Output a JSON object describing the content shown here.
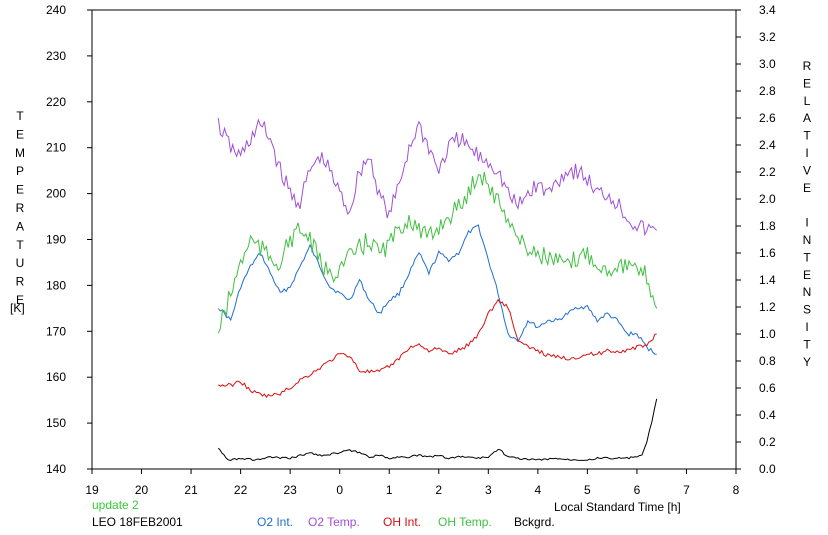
{
  "chart_data": {
    "type": "line",
    "xlabel": "Local Standard Time [h]",
    "ylabel_left": "TEMPERATURE",
    "ylabel_left_unit": "[K]",
    "ylabel_right": "RELATIVE INTENSITY",
    "xticks": [
      19,
      20,
      21,
      22,
      23,
      0,
      1,
      2,
      3,
      4,
      5,
      6,
      7,
      8
    ],
    "xlim": [
      19,
      32
    ],
    "ylim_left": [
      140,
      240
    ],
    "yticks_left": [
      140,
      150,
      160,
      170,
      180,
      190,
      200,
      210,
      220,
      230,
      240
    ],
    "ylim_right": [
      0,
      3.4
    ],
    "yticks_right": [
      "0.0",
      "0.2",
      "0.4",
      "0.6",
      "0.8",
      "1.0",
      "1.2",
      "1.4",
      "1.6",
      "1.8",
      "2.0",
      "2.2",
      "2.4",
      "2.6",
      "2.8",
      "3.0",
      "3.2",
      "3.4"
    ],
    "grid": false,
    "status_text": "update 2",
    "station_text": "LEO 18FEB2001",
    "legend_position": "bottom",
    "series": [
      {
        "name": "O2 Int.",
        "axis": "right",
        "color": "#1f6fd0",
        "x": [
          21.55,
          21.8,
          22.0,
          22.2,
          22.4,
          22.6,
          22.8,
          23.0,
          23.2,
          23.4,
          23.6,
          23.8,
          24.0,
          24.2,
          24.4,
          24.6,
          24.8,
          25.0,
          25.2,
          25.4,
          25.6,
          25.8,
          26.0,
          26.2,
          26.4,
          26.6,
          26.8,
          27.0,
          27.2,
          27.4,
          27.6,
          27.8,
          28.0,
          28.2,
          28.4,
          28.6,
          28.8,
          29.0,
          29.2,
          29.4,
          29.6,
          29.8,
          30.0,
          30.2,
          30.4
        ],
        "values": [
          1.2,
          1.1,
          1.35,
          1.5,
          1.6,
          1.45,
          1.3,
          1.35,
          1.5,
          1.65,
          1.5,
          1.35,
          1.3,
          1.25,
          1.4,
          1.25,
          1.15,
          1.25,
          1.3,
          1.45,
          1.6,
          1.45,
          1.6,
          1.55,
          1.6,
          1.75,
          1.8,
          1.55,
          1.3,
          1.0,
          0.95,
          1.1,
          1.05,
          1.1,
          1.1,
          1.15,
          1.2,
          1.2,
          1.1,
          1.15,
          1.1,
          1.0,
          1.0,
          0.9,
          0.85
        ]
      },
      {
        "name": "O2 Temp.",
        "axis": "left",
        "color": "#a050d8",
        "x": [
          21.55,
          21.8,
          22.0,
          22.2,
          22.4,
          22.6,
          22.8,
          23.0,
          23.2,
          23.4,
          23.6,
          23.8,
          24.0,
          24.2,
          24.4,
          24.6,
          24.8,
          25.0,
          25.2,
          25.4,
          25.6,
          25.8,
          26.0,
          26.2,
          26.4,
          26.6,
          26.8,
          27.0,
          27.2,
          27.4,
          27.6,
          27.8,
          28.0,
          28.2,
          28.4,
          28.6,
          28.8,
          29.0,
          29.2,
          29.4,
          29.6,
          29.8,
          30.0,
          30.2,
          30.4
        ],
        "values": [
          215,
          210,
          208,
          212,
          215,
          212,
          205,
          200,
          198,
          205,
          208,
          205,
          200,
          196,
          205,
          208,
          200,
          195,
          202,
          210,
          215,
          210,
          205,
          210,
          212,
          210,
          208,
          207,
          205,
          200,
          197,
          200,
          202,
          200,
          203,
          205,
          205,
          203,
          200,
          200,
          198,
          195,
          193,
          192,
          192
        ]
      },
      {
        "name": "OH Int.",
        "axis": "right",
        "color": "#d81010",
        "x": [
          21.55,
          21.8,
          22.0,
          22.2,
          22.4,
          22.6,
          22.8,
          23.0,
          23.2,
          23.4,
          23.6,
          23.8,
          24.0,
          24.2,
          24.4,
          24.6,
          24.8,
          25.0,
          25.2,
          25.4,
          25.6,
          25.8,
          26.0,
          26.2,
          26.4,
          26.6,
          26.8,
          27.0,
          27.2,
          27.4,
          27.6,
          27.8,
          28.0,
          28.2,
          28.4,
          28.6,
          28.8,
          29.0,
          29.2,
          29.4,
          29.6,
          29.8,
          30.0,
          30.2,
          30.4
        ],
        "values": [
          0.62,
          0.62,
          0.65,
          0.58,
          0.55,
          0.54,
          0.56,
          0.6,
          0.66,
          0.7,
          0.75,
          0.8,
          0.85,
          0.84,
          0.73,
          0.72,
          0.72,
          0.76,
          0.82,
          0.9,
          0.92,
          0.88,
          0.89,
          0.85,
          0.88,
          0.92,
          1.0,
          1.15,
          1.25,
          1.2,
          0.95,
          0.9,
          0.88,
          0.84,
          0.83,
          0.82,
          0.83,
          0.85,
          0.85,
          0.88,
          0.87,
          0.88,
          0.9,
          0.92,
          1.0
        ]
      },
      {
        "name": "OH Temp.",
        "axis": "left",
        "color": "#40c040",
        "x": [
          21.55,
          21.8,
          22.0,
          22.2,
          22.4,
          22.6,
          22.8,
          23.0,
          23.2,
          23.4,
          23.6,
          23.8,
          24.0,
          24.2,
          24.4,
          24.6,
          24.8,
          25.0,
          25.2,
          25.4,
          25.6,
          25.8,
          26.0,
          26.2,
          26.4,
          26.6,
          26.8,
          27.0,
          27.2,
          27.4,
          27.6,
          27.8,
          28.0,
          28.2,
          28.4,
          28.6,
          28.8,
          29.0,
          29.2,
          29.4,
          29.6,
          29.8,
          30.0,
          30.2,
          30.4
        ],
        "values": [
          170,
          178,
          185,
          190,
          188,
          186,
          185,
          190,
          192,
          190,
          185,
          182,
          184,
          186,
          188,
          190,
          187,
          189,
          192,
          195,
          192,
          190,
          193,
          195,
          197,
          200,
          205,
          202,
          198,
          195,
          190,
          188,
          187,
          186,
          185,
          184,
          186,
          187,
          185,
          183,
          185,
          184,
          183,
          182,
          175
        ]
      },
      {
        "name": "Bckgrd.",
        "axis": "right",
        "color": "#000000",
        "x": [
          21.55,
          21.7,
          21.8,
          22.0,
          22.2,
          22.4,
          22.6,
          22.8,
          23.0,
          23.2,
          23.4,
          23.6,
          23.8,
          24.0,
          24.2,
          24.4,
          24.6,
          24.8,
          25.0,
          25.2,
          25.4,
          25.6,
          25.8,
          26.0,
          26.2,
          26.4,
          26.6,
          26.8,
          27.0,
          27.2,
          27.4,
          27.6,
          27.8,
          28.0,
          28.2,
          28.4,
          28.6,
          28.8,
          29.0,
          29.2,
          29.4,
          29.6,
          29.8,
          30.0,
          30.1,
          30.2,
          30.3,
          30.4
        ],
        "values": [
          0.16,
          0.08,
          0.07,
          0.08,
          0.07,
          0.07,
          0.09,
          0.08,
          0.08,
          0.1,
          0.12,
          0.1,
          0.11,
          0.12,
          0.14,
          0.12,
          0.09,
          0.1,
          0.08,
          0.09,
          0.09,
          0.1,
          0.09,
          0.1,
          0.08,
          0.09,
          0.09,
          0.08,
          0.09,
          0.15,
          0.09,
          0.08,
          0.07,
          0.07,
          0.07,
          0.08,
          0.07,
          0.07,
          0.07,
          0.08,
          0.08,
          0.08,
          0.08,
          0.09,
          0.1,
          0.2,
          0.35,
          0.52
        ]
      }
    ]
  }
}
